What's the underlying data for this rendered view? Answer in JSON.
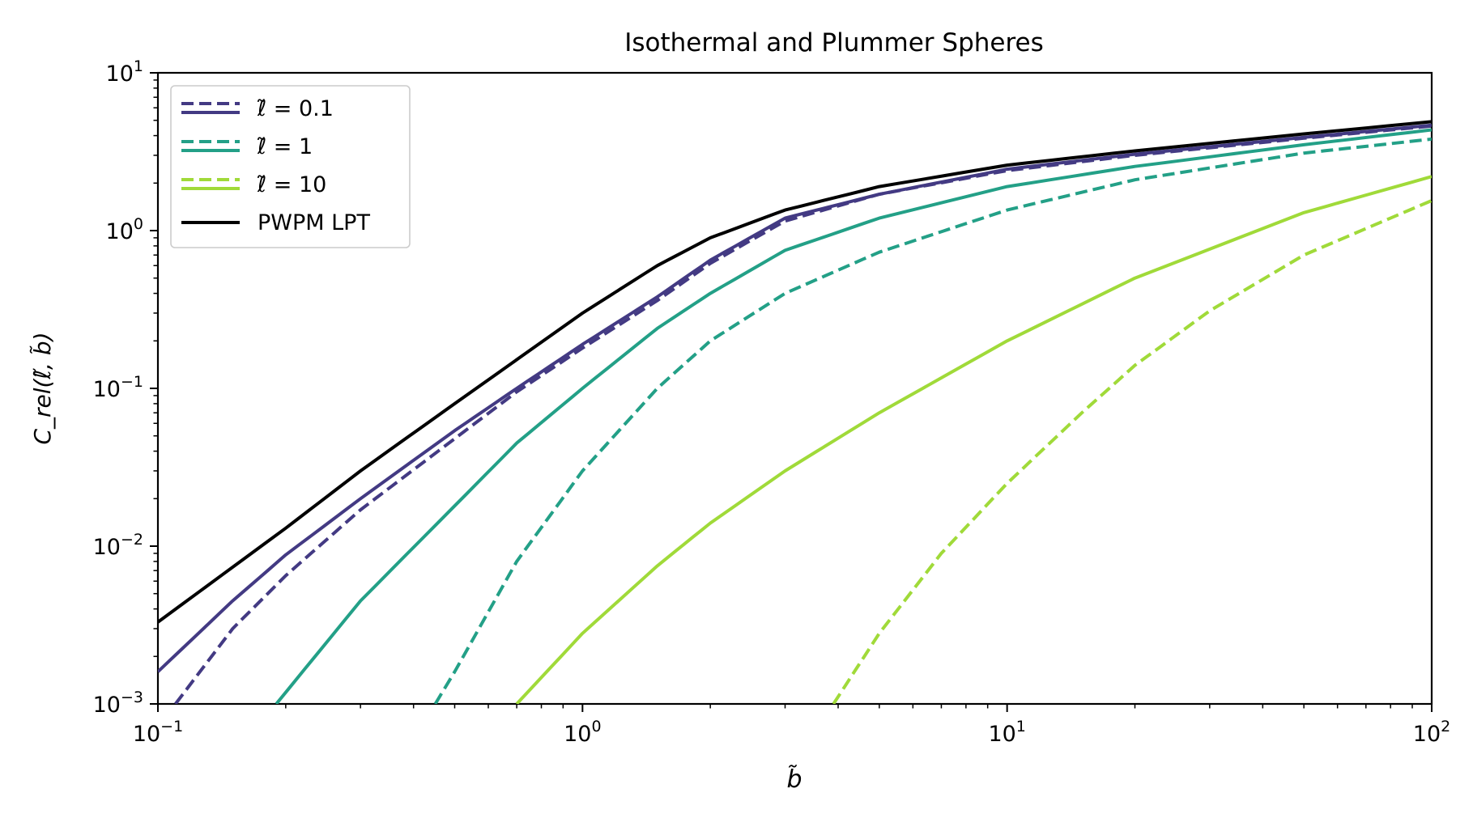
{
  "chart_data": {
    "type": "line",
    "title": "Isothermal and Plummer Spheres",
    "xlabel": "b̃",
    "ylabel": "C_rel(ℓ̃, b̃)",
    "xscale": "log",
    "yscale": "log",
    "xlim": [
      0.1,
      100
    ],
    "ylim": [
      0.001,
      10
    ],
    "x_tick_values": [
      0.1,
      1,
      10,
      100
    ],
    "x_tick_labels": [
      {
        "base": "10",
        "exp": "−1"
      },
      {
        "base": "10",
        "exp": "0"
      },
      {
        "base": "10",
        "exp": "1"
      },
      {
        "base": "10",
        "exp": "2"
      }
    ],
    "y_tick_values": [
      0.001,
      0.01,
      0.1,
      1,
      10
    ],
    "y_tick_labels": [
      {
        "base": "10",
        "exp": "−3"
      },
      {
        "base": "10",
        "exp": "−2"
      },
      {
        "base": "10",
        "exp": "−1"
      },
      {
        "base": "10",
        "exp": "0"
      },
      {
        "base": "10",
        "exp": "1"
      }
    ],
    "grid": false,
    "legend_position": "top-left",
    "legend": [
      {
        "label": "ℓ̃ = 0.1",
        "color": "#433a83",
        "style": "dashed+solid"
      },
      {
        "label": "ℓ̃ = 1",
        "color": "#23a087",
        "style": "dashed+solid"
      },
      {
        "label": "ℓ̃ = 10",
        "color": "#a0da39",
        "style": "dashed+solid"
      },
      {
        "label": "PWPM LPT",
        "color": "#000000",
        "style": "solid"
      }
    ],
    "series": [
      {
        "group": "ℓ̃ = 0.1",
        "style": "solid",
        "color": "#433a83",
        "x": [
          0.1,
          0.15,
          0.2,
          0.3,
          0.5,
          0.7,
          1,
          1.5,
          2,
          3,
          5,
          10,
          20,
          50,
          100
        ],
        "y": [
          0.0016,
          0.0045,
          0.0088,
          0.02,
          0.054,
          0.1,
          0.19,
          0.38,
          0.65,
          1.2,
          1.7,
          2.45,
          3.05,
          3.9,
          4.65
        ]
      },
      {
        "group": "ℓ̃ = 0.1",
        "style": "dashed",
        "color": "#433a83",
        "x": [
          0.11,
          0.15,
          0.2,
          0.3,
          0.5,
          0.7,
          1,
          1.5,
          2,
          3,
          5,
          10,
          20,
          50,
          100
        ],
        "y": [
          0.001,
          0.003,
          0.0065,
          0.017,
          0.048,
          0.095,
          0.18,
          0.36,
          0.62,
          1.15,
          1.7,
          2.4,
          3.0,
          3.85,
          4.6
        ]
      },
      {
        "group": "ℓ̃ = 1",
        "style": "solid",
        "color": "#23a087",
        "x": [
          0.19,
          0.3,
          0.5,
          0.7,
          1,
          1.5,
          2,
          3,
          5,
          10,
          20,
          50,
          100
        ],
        "y": [
          0.001,
          0.0045,
          0.018,
          0.045,
          0.1,
          0.24,
          0.4,
          0.75,
          1.2,
          1.9,
          2.55,
          3.5,
          4.35
        ]
      },
      {
        "group": "ℓ̃ = 1",
        "style": "dashed",
        "color": "#23a087",
        "x": [
          0.45,
          0.5,
          0.7,
          1,
          1.5,
          2,
          3,
          5,
          10,
          20,
          50,
          100
        ],
        "y": [
          0.001,
          0.0016,
          0.008,
          0.03,
          0.1,
          0.2,
          0.4,
          0.73,
          1.35,
          2.1,
          3.1,
          3.8
        ]
      },
      {
        "group": "ℓ̃ = 10",
        "style": "solid",
        "color": "#a0da39",
        "x": [
          0.7,
          1,
          1.5,
          2,
          3,
          5,
          10,
          20,
          50,
          100
        ],
        "y": [
          0.001,
          0.0028,
          0.0075,
          0.014,
          0.03,
          0.07,
          0.2,
          0.5,
          1.3,
          2.2
        ]
      },
      {
        "group": "ℓ̃ = 10",
        "style": "dashed",
        "color": "#a0da39",
        "x": [
          3.9,
          5,
          7,
          10,
          15,
          20,
          30,
          50,
          100
        ],
        "y": [
          0.001,
          0.0028,
          0.009,
          0.025,
          0.07,
          0.14,
          0.31,
          0.7,
          1.55
        ]
      },
      {
        "group": "PWPM LPT",
        "style": "solid",
        "color": "#000000",
        "x": [
          0.1,
          0.2,
          0.3,
          0.5,
          1,
          1.5,
          2,
          3,
          5,
          10,
          20,
          50,
          100
        ],
        "y": [
          0.0033,
          0.013,
          0.03,
          0.08,
          0.3,
          0.6,
          0.9,
          1.35,
          1.9,
          2.6,
          3.2,
          4.1,
          4.9
        ]
      }
    ]
  }
}
